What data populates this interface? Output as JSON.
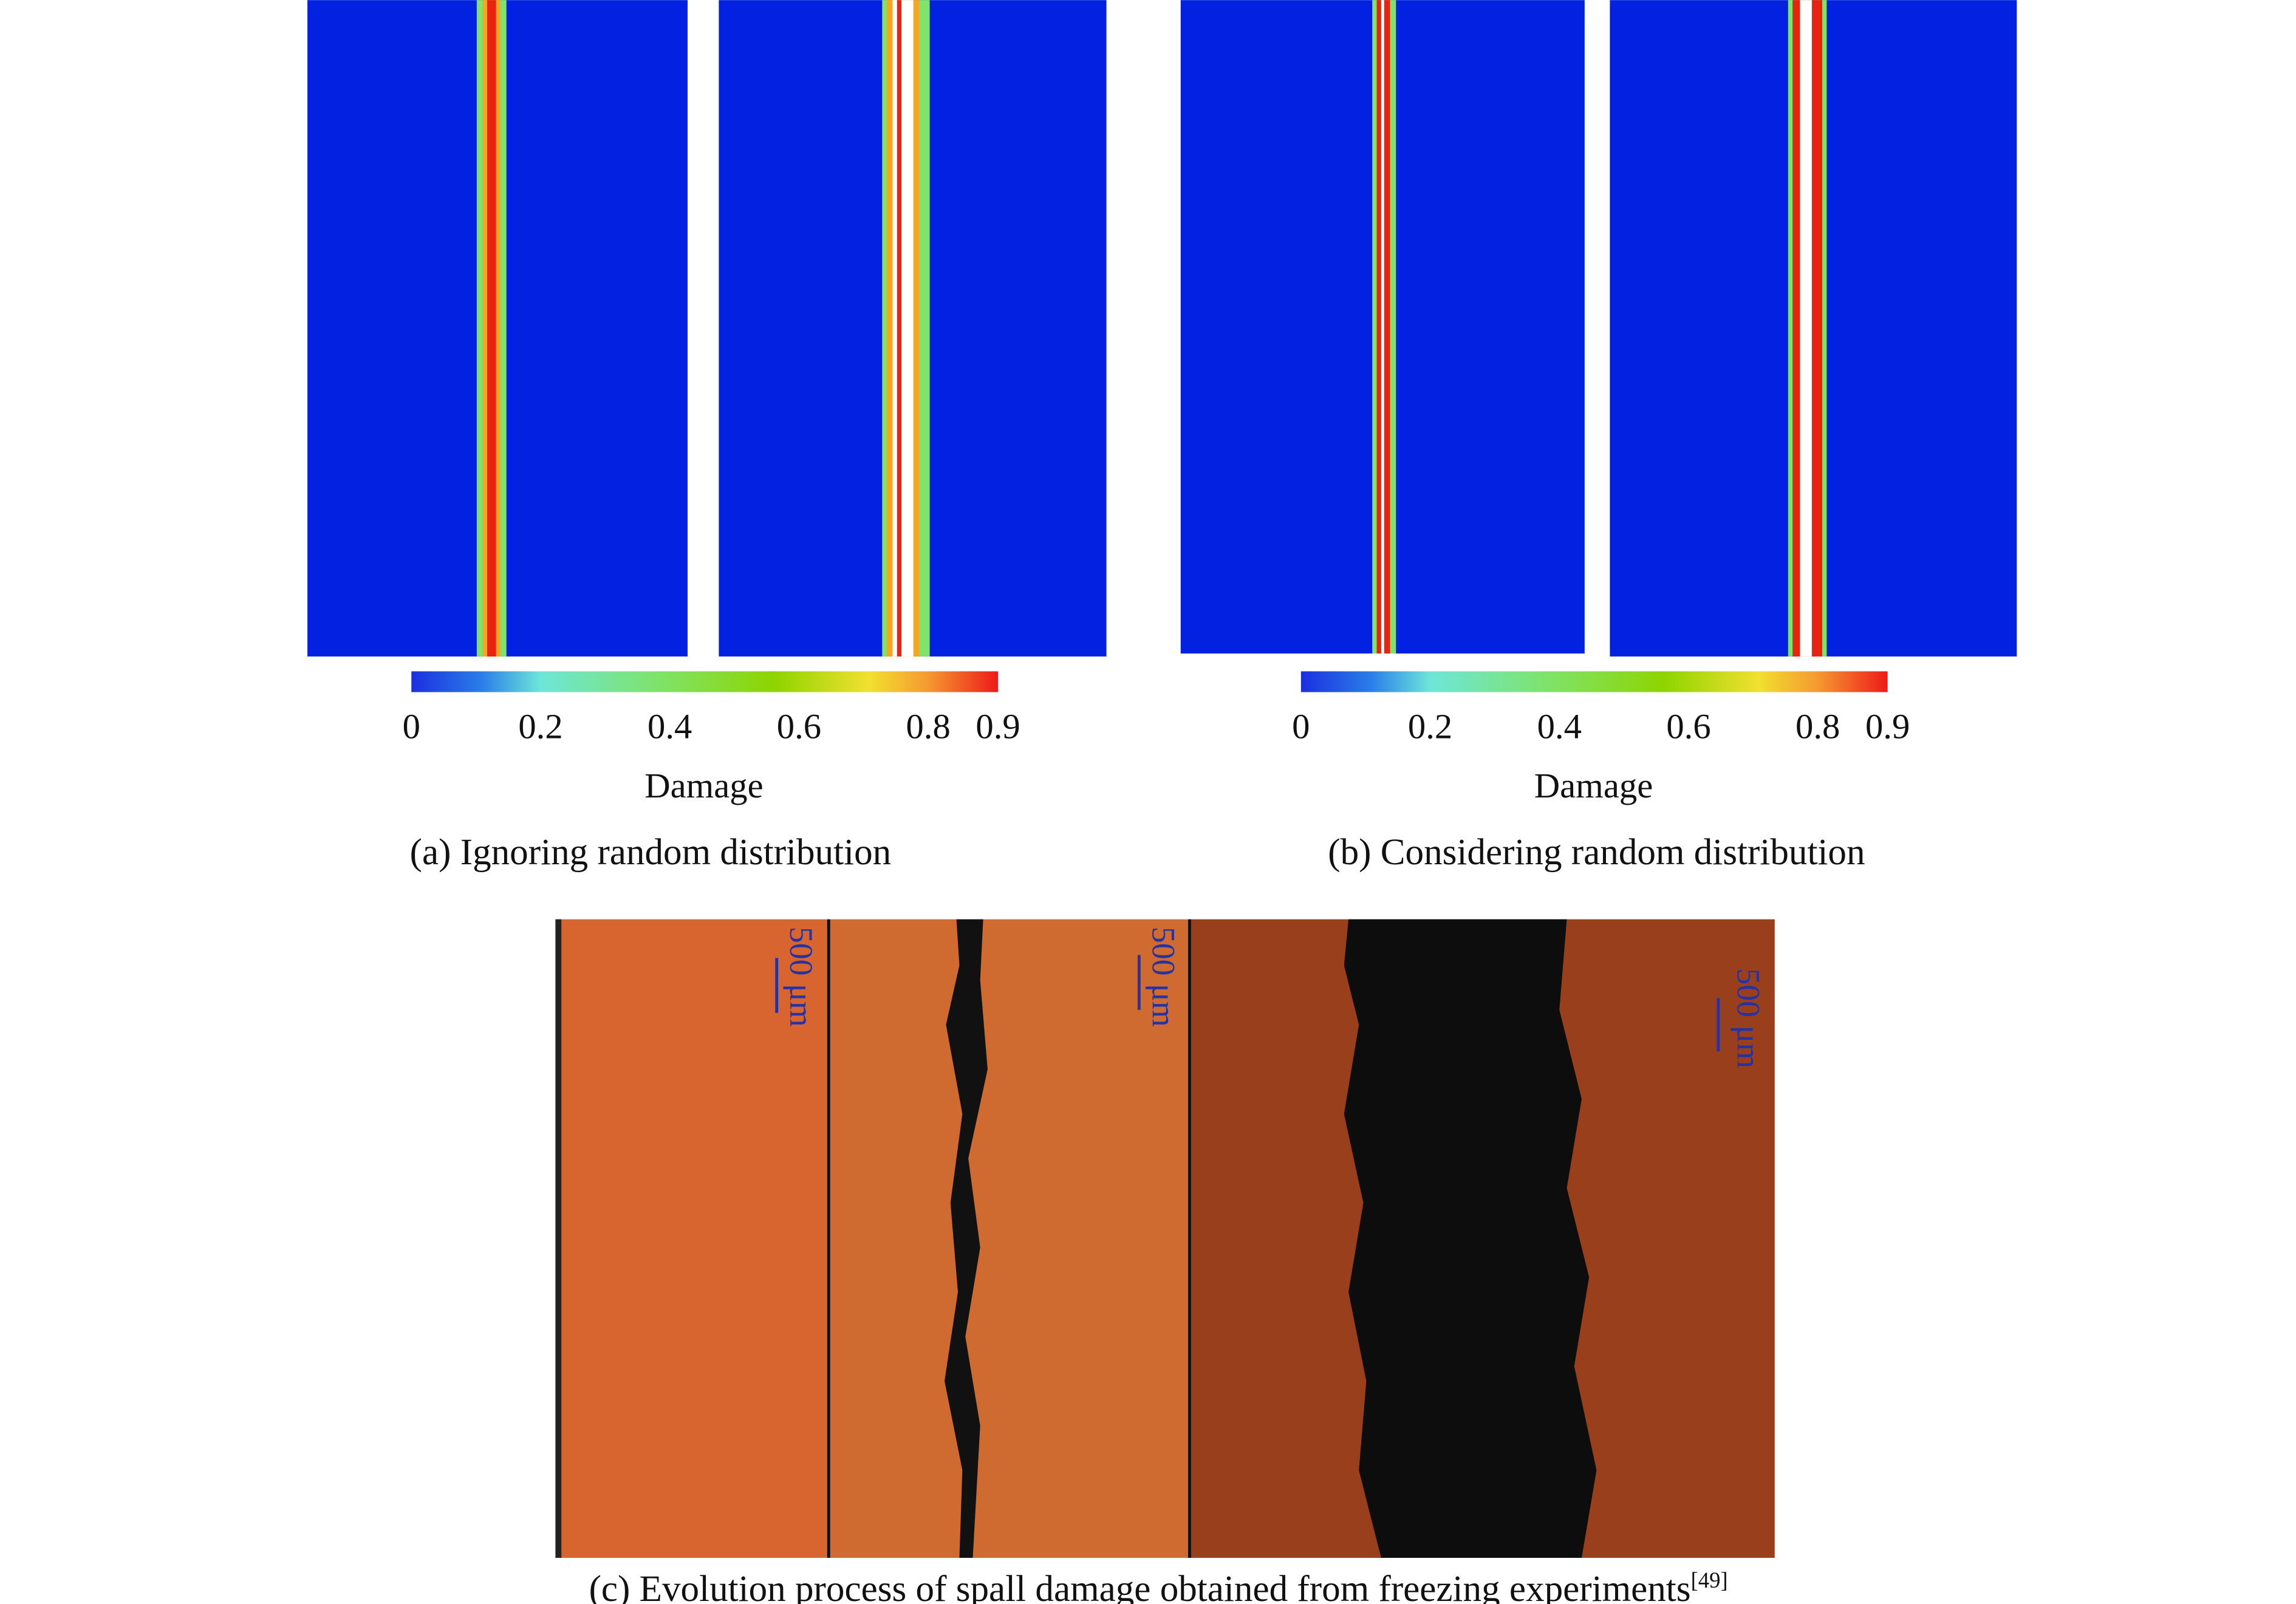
{
  "panel_a": {
    "colorbar": {
      "ticks": [
        "0",
        "0.2",
        "0.4",
        "0.6",
        "0.8",
        "0.9"
      ],
      "label": "Damage"
    },
    "caption": "(a) Ignoring random distribution"
  },
  "panel_b": {
    "colorbar": {
      "ticks": [
        "0",
        "0.2",
        "0.4",
        "0.6",
        "0.8",
        "0.9"
      ],
      "label": "Damage"
    },
    "caption": "(b) Considering random distribution"
  },
  "panel_c": {
    "scale_bars": [
      "500 μm",
      "500 μm",
      "500 μm"
    ],
    "caption": "(c) Evolution process of spall damage obtained from freezing experiments",
    "citation": "[49]"
  }
}
